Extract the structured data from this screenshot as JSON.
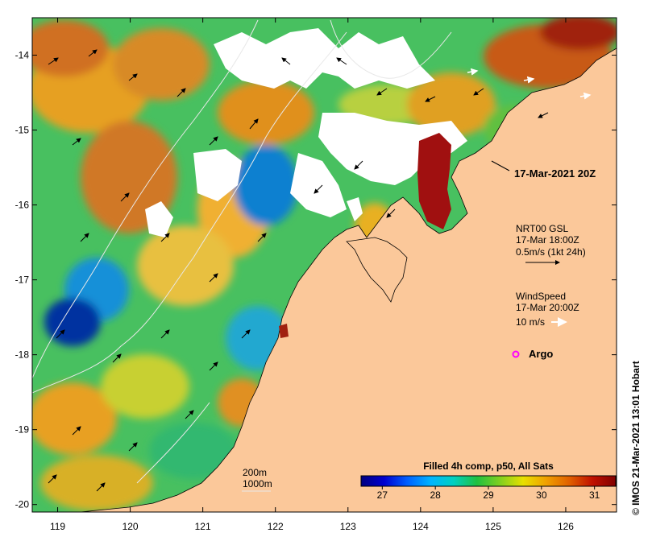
{
  "map": {
    "lon_ticks": [
      "119",
      "120",
      "121",
      "122",
      "123",
      "124",
      "125",
      "126"
    ],
    "lat_ticks": [
      "-14",
      "-15",
      "-16",
      "-17",
      "-18",
      "-19",
      "-20"
    ],
    "lon_range": [
      118.65,
      126.7
    ],
    "lat_range": [
      -20.1,
      -13.5
    ],
    "colors": {
      "land": "#fbc89a",
      "missing": "#ffffff",
      "coast": "#000000",
      "isobath": "#e8e8e8"
    }
  },
  "annotations": {
    "timestamp": "17-Mar-2021 20Z",
    "current_title": "NRT00 GSL",
    "current_time": "17-Mar 18:00Z",
    "current_scale": "0.5m/s (1kt 24h)",
    "wind_title": "WindSpeed",
    "wind_time": "17-Mar 20:00Z",
    "wind_scale": "10 m/s",
    "argo_label": "Argo",
    "argo_color": "#ff00ff",
    "isobath_200": "200m",
    "isobath_1000": "1000m"
  },
  "colorbar": {
    "title": "Filled 4h comp, p50, All Sats",
    "ticks": [
      "27",
      "28",
      "29",
      "30",
      "31"
    ],
    "range": [
      26.6,
      31.4
    ],
    "stops": [
      "#000080",
      "#0000d0",
      "#0060ff",
      "#00b4ff",
      "#00d0c0",
      "#20c040",
      "#80d020",
      "#e8e000",
      "#f0a000",
      "#e06000",
      "#c01000",
      "#800000"
    ]
  },
  "credit": "© IMOS 21-Mar-2021 13:01 Hobart"
}
